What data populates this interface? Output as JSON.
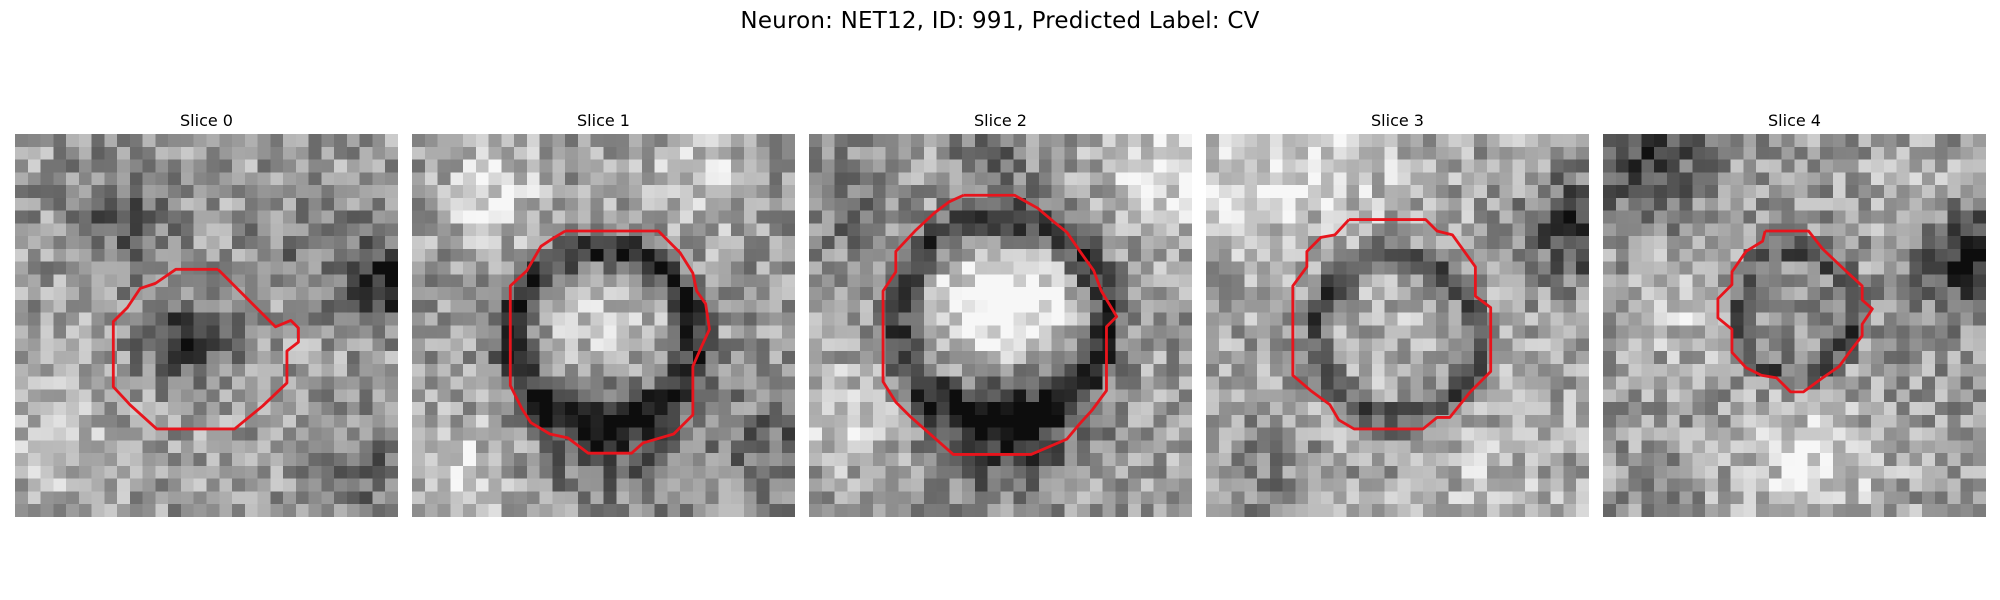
{
  "figure": {
    "title": "Neuron: NET12, ID: 991, Predicted Label: CV",
    "grid_size": 30,
    "colormap": "gray",
    "contour_color": "#e8141c"
  },
  "panels": [
    {
      "title": "Slice 0"
    },
    {
      "title": "Slice 1"
    },
    {
      "title": "Slice 2"
    },
    {
      "title": "Slice 3"
    },
    {
      "title": "Slice 4"
    }
  ]
}
